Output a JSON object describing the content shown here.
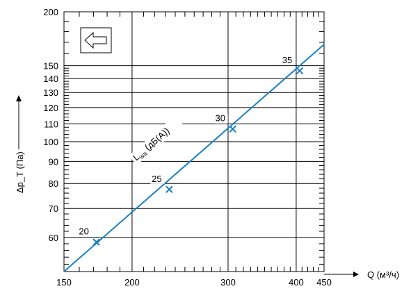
{
  "chart_data": {
    "type": "line",
    "x_axis": {
      "label": "Q (м³/ч)",
      "scale": "log",
      "range": [
        150,
        450
      ],
      "ticks": [
        150,
        200,
        300,
        400,
        450
      ]
    },
    "y_axis": {
      "label": "Δp_T (Па)",
      "scale": "log",
      "range": [
        50,
        200
      ],
      "ticks": [
        60,
        70,
        80,
        90,
        100,
        110,
        120,
        130,
        140,
        150,
        200
      ]
    },
    "series": [
      {
        "name": "Lwa (дБ(А))",
        "color": "#1a7fc1",
        "points": [
          [
            150,
            50
          ],
          [
            450,
            168
          ]
        ],
        "noise_markers": [
          {
            "label": "20",
            "x": 172,
            "y": 58.5
          },
          {
            "label": "25",
            "x": 234,
            "y": 77.5
          },
          {
            "label": "30",
            "x": 306,
            "y": 107
          },
          {
            "label": "35",
            "x": 406,
            "y": 146
          }
        ]
      }
    ],
    "annotations": {
      "line_label_main": "L",
      "line_label_sub": "wa",
      "line_label_suffix": " (дБ(А))",
      "arrow_icon": "arrow-left-icon"
    },
    "grid": true
  }
}
